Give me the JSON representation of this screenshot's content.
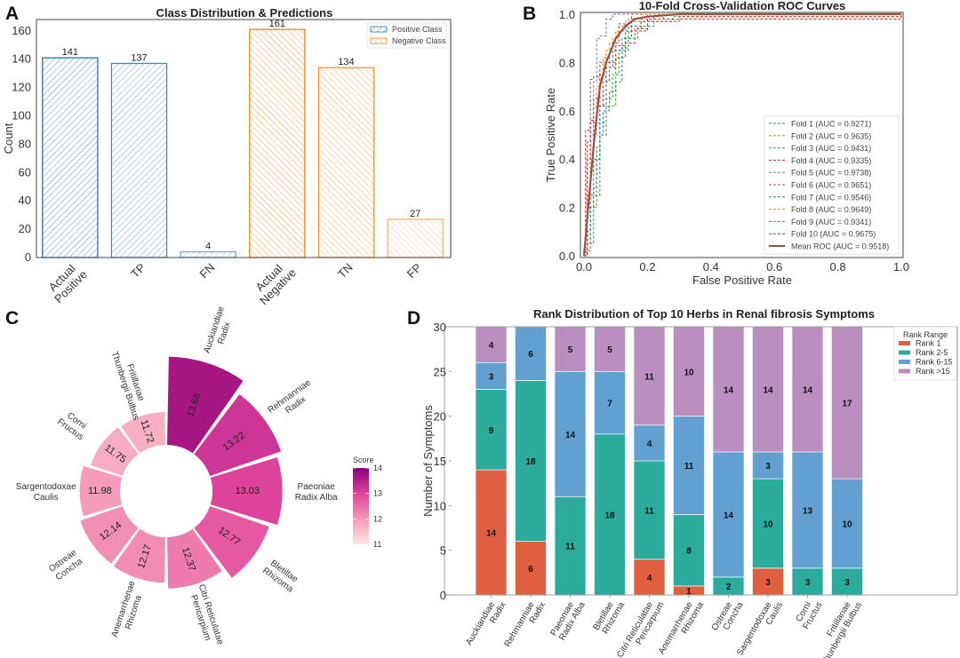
{
  "chart_data": [
    {
      "panel": "A",
      "type": "bar",
      "title": "Class Distribution & Predictions",
      "xlabel": "",
      "ylabel": "Count",
      "ylim": [
        0,
        168
      ],
      "yticks": [
        0,
        20,
        40,
        60,
        80,
        100,
        120,
        140,
        160
      ],
      "categories": [
        "Actual Positive",
        "TP",
        "FN",
        "Actual Negative",
        "TN",
        "FP"
      ],
      "category_lines": [
        [
          "Actual",
          "Positive"
        ],
        [
          "TP"
        ],
        [
          "FN"
        ],
        [
          "Actual",
          "Negative"
        ],
        [
          "TN"
        ],
        [
          "FP"
        ]
      ],
      "values": [
        141,
        137,
        4,
        161,
        134,
        27
      ],
      "class": [
        "positive",
        "positive",
        "positive",
        "negative",
        "negative",
        "negative"
      ],
      "legend": [
        {
          "name": "Positive Class",
          "color": "#1f77b4"
        },
        {
          "name": "Negative Class",
          "color": "#ff7f0e"
        }
      ],
      "legend_position": "top-right"
    },
    {
      "panel": "B",
      "type": "line",
      "title": "10-Fold Cross-Validation ROC Curves",
      "xlabel": "False Positive Rate",
      "ylabel": "True Positive Rate",
      "xlim": [
        0.0,
        1.0
      ],
      "ylim": [
        0.0,
        1.0
      ],
      "xticks": [
        "0.0",
        "0.2",
        "0.4",
        "0.6",
        "0.8",
        "1.0"
      ],
      "yticks": [
        "0.0",
        "0.2",
        "0.4",
        "0.6",
        "0.8",
        "1.0"
      ],
      "legend_position": "bottom-right",
      "series": [
        {
          "name": "Fold 1 (AUC = 0.9271)",
          "auc": 0.9271,
          "color": "#1f77b4",
          "style": "dashed",
          "x": [
            0,
            0.01,
            0.02,
            0.03,
            0.04,
            0.05,
            0.06,
            0.08,
            0.1,
            0.12,
            0.14,
            0.18,
            0.25,
            1.0
          ],
          "y": [
            0,
            0.05,
            0.2,
            0.28,
            0.45,
            0.5,
            0.6,
            0.68,
            0.72,
            0.86,
            0.95,
            0.98,
            1.0,
            1.0
          ]
        },
        {
          "name": "Fold 2 (AUC = 0.9635)",
          "auc": 0.9635,
          "color": "#ff7f0e",
          "style": "dashed",
          "x": [
            0,
            0.01,
            0.02,
            0.03,
            0.05,
            0.07,
            0.09,
            0.11,
            0.14,
            0.2,
            1.0
          ],
          "y": [
            0,
            0.2,
            0.35,
            0.55,
            0.74,
            0.85,
            0.9,
            0.95,
            0.98,
            1.0,
            1.0
          ]
        },
        {
          "name": "Fold 3 (AUC = 0.9431)",
          "auc": 0.9431,
          "color": "#2ca02c",
          "style": "dashed",
          "x": [
            0,
            0.01,
            0.02,
            0.04,
            0.05,
            0.07,
            0.09,
            0.11,
            0.14,
            0.2,
            1.0
          ],
          "y": [
            0,
            0.02,
            0.2,
            0.4,
            0.55,
            0.65,
            0.75,
            0.85,
            0.93,
            0.98,
            1.0
          ]
        },
        {
          "name": "Fold 4 (AUC = 0.9335)",
          "auc": 0.9335,
          "color": "#d62728",
          "style": "dashed",
          "x": [
            0,
            0.005,
            0.02,
            0.04,
            0.06,
            0.08,
            0.1,
            0.13,
            0.16,
            0.2,
            1.0
          ],
          "y": [
            0,
            0.52,
            0.56,
            0.62,
            0.72,
            0.78,
            0.82,
            0.88,
            0.94,
            0.98,
            0.98
          ]
        },
        {
          "name": "Fold 5 (AUC = 0.9738)",
          "auc": 0.9738,
          "color": "#9467bd",
          "style": "dashed",
          "x": [
            0,
            0.01,
            0.02,
            0.03,
            0.04,
            0.05,
            0.07,
            0.09,
            0.1,
            1.0
          ],
          "y": [
            0,
            0.25,
            0.5,
            0.72,
            0.9,
            0.91,
            0.98,
            1.0,
            1.0,
            1.0
          ]
        },
        {
          "name": "Fold 6 (AUC = 0.9651)",
          "auc": 0.9651,
          "color": "#8c564b",
          "style": "dashed",
          "x": [
            0,
            0.005,
            0.01,
            0.02,
            0.03,
            0.05,
            0.08,
            0.11,
            0.15,
            1.0
          ],
          "y": [
            0,
            0.3,
            0.47,
            0.73,
            0.74,
            0.8,
            0.88,
            0.96,
            1.0,
            1.0
          ]
        },
        {
          "name": "Fold 7 (AUC = 0.9546)",
          "auc": 0.9546,
          "color": "#1f77b4",
          "style": "dashed",
          "x": [
            0,
            0.01,
            0.02,
            0.03,
            0.05,
            0.07,
            0.09,
            0.12,
            0.15,
            0.22,
            1.0
          ],
          "y": [
            0,
            0.1,
            0.25,
            0.4,
            0.62,
            0.78,
            0.85,
            0.9,
            0.97,
            1.0,
            1.0
          ]
        },
        {
          "name": "Fold 8 (AUC = 0.9649)",
          "auc": 0.9649,
          "color": "#ff7f0e",
          "style": "dashed",
          "x": [
            0,
            0.01,
            0.02,
            0.04,
            0.06,
            0.08,
            0.1,
            0.13,
            0.18,
            1.0
          ],
          "y": [
            0,
            0.22,
            0.5,
            0.7,
            0.82,
            0.88,
            0.93,
            0.97,
            1.0,
            1.0
          ]
        },
        {
          "name": "Fold 9 (AUC = 0.9341)",
          "auc": 0.9341,
          "color": "#2ca02c",
          "style": "dashed",
          "x": [
            0,
            0.01,
            0.03,
            0.05,
            0.07,
            0.1,
            0.13,
            0.17,
            0.22,
            0.28,
            1.0
          ],
          "y": [
            0,
            0.05,
            0.25,
            0.5,
            0.62,
            0.82,
            0.9,
            0.95,
            0.97,
            0.99,
            1.0
          ]
        },
        {
          "name": "Fold 10 (AUC = 0.9675)",
          "auc": 0.9675,
          "color": "#d62728",
          "style": "dashed",
          "x": [
            0,
            0.01,
            0.02,
            0.03,
            0.05,
            0.07,
            0.1,
            0.13,
            0.18,
            0.3,
            1.0
          ],
          "y": [
            0,
            0.4,
            0.55,
            0.65,
            0.75,
            0.8,
            0.87,
            0.93,
            0.97,
            0.99,
            0.99
          ]
        },
        {
          "name": "Mean ROC (AUC = 0.9518)",
          "auc": 0.9518,
          "color": "#8c564b",
          "style": "solid",
          "x": [
            0,
            0.01,
            0.02,
            0.03,
            0.05,
            0.07,
            0.1,
            0.13,
            0.16,
            0.2,
            0.3,
            1.0
          ],
          "y": [
            0,
            0.15,
            0.3,
            0.45,
            0.7,
            0.8,
            0.9,
            0.95,
            0.98,
            0.99,
            1.0,
            1.0
          ]
        }
      ]
    },
    {
      "panel": "C",
      "type": "bar",
      "subtype": "circular-bar",
      "title": "",
      "categories": [
        "Auckiandiae Radix",
        "Rehmanniae Radix",
        "Paeoniae Radix Alba",
        "Bletillae Rhizoma",
        "Citri Reticulatae Pericarpium",
        "Anemarrhenae Rhizoma",
        "Ostreae Concha",
        "Sargentodoxae Caulis",
        "Corni Fructus",
        "Fritillariae Thunbergii Bulbus"
      ],
      "category_lines": [
        [
          "Auckiandiae",
          "Radix"
        ],
        [
          "Rehmanniae",
          "Radix"
        ],
        [
          "Paeoniae",
          "Radix Alba"
        ],
        [
          "Bletillae",
          "Rhizoma"
        ],
        [
          "Citri Reticulatae",
          "Pericarpium"
        ],
        [
          "Anemarrhenae",
          "Rhizoma"
        ],
        [
          "Ostreae",
          "Concha"
        ],
        [
          "Sargentodoxae",
          "Caulis"
        ],
        [
          "Corni",
          "Fructus"
        ],
        [
          "Fritillariae",
          "Thunbergii Bulbus"
        ]
      ],
      "values": [
        13.68,
        13.22,
        13.03,
        12.77,
        12.37,
        12.17,
        12.14,
        11.98,
        11.75,
        11.72
      ],
      "value_labels": [
        "13.68",
        "13.22",
        "13.03",
        "12.77",
        "12.37",
        "12.17",
        "12.14",
        "11.98",
        "11.75",
        "11.72"
      ],
      "colorbar": {
        "title": "Score",
        "min": 11,
        "max": 14,
        "ticks": [
          "14",
          "13",
          "12",
          "11"
        ],
        "colors": [
          "#fde6e2",
          "#f49ab8",
          "#e0459c",
          "#8a0178"
        ]
      }
    },
    {
      "panel": "D",
      "type": "bar",
      "subtype": "stacked",
      "title": "Rank Distribution of Top 10 Herbs in Renal fibrosis Symptoms",
      "xlabel": "",
      "ylabel": "Number of Symptoms",
      "ylim": [
        0,
        30
      ],
      "yticks": [
        0,
        5,
        10,
        15,
        20,
        25,
        30
      ],
      "categories": [
        "Auckiandiae Radix",
        "Rehmanniae Radix",
        "Paeoniae Radix Alba",
        "Bletillae Rhizoma",
        "Citri Reticulatae Pericarpium",
        "Anemarrhenae Rhizoma",
        "Ostreae Concha",
        "Sargentodoxae Caulis",
        "Corni Fructus",
        "Fritillariae Thunbergii Bulbus"
      ],
      "category_lines": [
        [
          "Auckiandiae",
          "Radix"
        ],
        [
          "Rehmanniae",
          "Radix"
        ],
        [
          "Paeoniae",
          "Radix Alba"
        ],
        [
          "Bletillae",
          "Rhizoma"
        ],
        [
          "Citri Reticulatae",
          "Pericarpium"
        ],
        [
          "Anemarrhenae",
          "Rhizoma"
        ],
        [
          "Ostreae",
          "Concha"
        ],
        [
          "Sargentodoxae",
          "Caulis"
        ],
        [
          "Corni",
          "Fructus"
        ],
        [
          "Fritillariae",
          "Thunbergii Bulbus"
        ]
      ],
      "legend_title": "Rank Range",
      "legend_position": "top-right",
      "series": [
        {
          "name": "Rank 1",
          "color": "#e15f41",
          "values": [
            14,
            6,
            0,
            0,
            4,
            1,
            0,
            3,
            0,
            0
          ]
        },
        {
          "name": "Rank 2-5",
          "color": "#2aab9b",
          "values": [
            9,
            18,
            11,
            18,
            11,
            8,
            2,
            10,
            3,
            3
          ]
        },
        {
          "name": "Rank 6-15",
          "color": "#61a0d1",
          "values": [
            3,
            6,
            14,
            7,
            4,
            11,
            14,
            3,
            13,
            10
          ]
        },
        {
          "name": "Rank >15",
          "color": "#bb8ec0",
          "values": [
            4,
            0,
            5,
            5,
            11,
            10,
            14,
            14,
            14,
            17
          ]
        }
      ]
    }
  ],
  "panel_letters": [
    "A",
    "B",
    "C",
    "D"
  ]
}
